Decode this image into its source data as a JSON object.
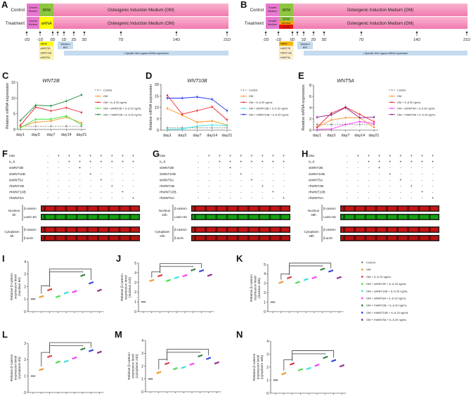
{
  "timeline_a": {
    "letter": "A",
    "row_labels": [
      "Control",
      "Treatment"
    ],
    "growth_medium": [
      "Growth",
      "Medium"
    ],
    "sfm": "SFM",
    "treatment_label": "siRNA",
    "om": "Osteogenic Induction Medium (OM)",
    "days": [
      "-2D",
      "-1D",
      "0D",
      "1D",
      "2D",
      "3D",
      "7D",
      "14D",
      "21D"
    ],
    "western_blot": [
      "Western",
      "Blot"
    ],
    "wnt_expression": "•  Specific Wnt Ligand mRNA expression",
    "reagent_list": [
      "siRNA",
      "siWNT2B",
      "siWNT10B",
      "siWNT5A"
    ]
  },
  "timeline_b": {
    "letter": "B",
    "row_labels": [
      "Control",
      "Treatment"
    ],
    "growth_medium": [
      "Growth",
      "Medium"
    ],
    "sfm": "SFM",
    "treatment_stack": [
      "SFM",
      "Activator",
      "IL-6"
    ],
    "om": "Osteogenic Induction Medium (OM)",
    "days": [
      "-2D",
      "-1D",
      "0D",
      "1D",
      "2D",
      "3D",
      "7D",
      "14D",
      "21D"
    ],
    "western_blot": [
      "Western",
      "Blot"
    ],
    "wnt_expression": "•  Specific Wnt Ligand mRNA expression",
    "reagent_list": [
      "rhWNT",
      "rhWNT2B",
      "rhWNT10B",
      "rhWNT5A"
    ]
  },
  "chart_data": [
    {
      "type": "line",
      "panel": "C",
      "title": "WNT2B",
      "ylabel": "Relative mRNA expression",
      "x": [
        "day1",
        "day3",
        "day7",
        "day14",
        "day21"
      ],
      "ylim": [
        0,
        15
      ],
      "yticks": [
        0,
        5,
        10,
        15
      ],
      "series": [
        {
          "name": "Control",
          "color": "#888888",
          "dashed": true,
          "values": [
            1,
            1,
            1,
            1,
            1
          ]
        },
        {
          "name": "OM",
          "color": "#f7931e",
          "values": [
            0.8,
            2.3,
            2.7,
            3.9,
            2.1
          ]
        },
        {
          "name": "OM + IL-6 20 ng/mL",
          "color": "#e8262b",
          "values": [
            1.3,
            7.1,
            5.9,
            6.9,
            5.4
          ]
        },
        {
          "name": "OM + siWNT2B + IL-6 20 ng/mL",
          "color": "#39e639",
          "values": [
            0.5,
            3.2,
            3.3,
            4.3,
            1.5
          ]
        },
        {
          "name": "OM + rhWNT2B + IL-6 20 ng/mL",
          "color": "#1f8a3a",
          "values": [
            2.8,
            7.7,
            7.5,
            9.0,
            11.0
          ]
        }
      ]
    },
    {
      "type": "line",
      "panel": "D",
      "title": "WNT10B",
      "ylabel": "Relative mRNA expression",
      "x": [
        "day1",
        "day3",
        "day7",
        "day14",
        "day21"
      ],
      "ylim": [
        0,
        20
      ],
      "yticks": [
        0,
        5,
        10,
        15,
        20
      ],
      "series": [
        {
          "name": "Control",
          "color": "#888888",
          "dashed": true,
          "values": [
            1,
            1,
            1,
            1,
            1
          ]
        },
        {
          "name": "OM",
          "color": "#f7931e",
          "values": [
            9.5,
            6.5,
            3.5,
            4.0,
            2.2
          ]
        },
        {
          "name": "OM + IL-6 20 ng/mL",
          "color": "#e8262b",
          "values": [
            15.2,
            7.0,
            8.5,
            10.2,
            4.5
          ]
        },
        {
          "name": "OM + siWNT10B + IL-6 20 ng/mL",
          "color": "#2ee6e6",
          "values": [
            0.3,
            0.5,
            1.8,
            2.2,
            2.0
          ]
        },
        {
          "name": "OM + rhWNT10B + IL-6 20 ng/mL",
          "color": "#2233ee",
          "values": [
            14.0,
            14.0,
            14.5,
            13.5,
            8.5
          ]
        }
      ]
    },
    {
      "type": "line",
      "panel": "E",
      "title": "WNT5A",
      "ylabel": "Relative mRNA expression",
      "x": [
        "day1",
        "day3",
        "day7",
        "day14",
        "day21"
      ],
      "ylim": [
        0,
        8
      ],
      "yticks": [
        0,
        2,
        4,
        6,
        8
      ],
      "series": [
        {
          "name": "Control",
          "color": "#888888",
          "dashed": true,
          "values": [
            1,
            1,
            1,
            1,
            1
          ]
        },
        {
          "name": "OM",
          "color": "#f7931e",
          "values": [
            0.5,
            1.8,
            2.2,
            2.2,
            0.5
          ]
        },
        {
          "name": "OM + IL-6 20 ng/mL",
          "color": "#e8262b",
          "values": [
            0.5,
            3.0,
            4.1,
            2.8,
            1.5
          ]
        },
        {
          "name": "OM + siWNT5A + IL-6 20 ng/mL",
          "color": "#ff33ff",
          "values": [
            0.1,
            0.2,
            1.0,
            1.5,
            1.2
          ]
        },
        {
          "name": "OM + rhWNT5A + IL-6 20 ng/mL",
          "color": "#8b1a8b",
          "values": [
            2.3,
            2.7,
            4.0,
            2.2,
            2.3
          ]
        }
      ]
    },
    {
      "type": "scatter",
      "panel": "I",
      "ylabel": [
        "Relative β-catenin",
        "expression level",
        "(nucleus 6h)"
      ],
      "ylim": [
        0,
        4
      ],
      "yticks": [
        0,
        1,
        2,
        3,
        4
      ],
      "values": [
        1,
        1.2,
        1.75,
        1.2,
        1.5,
        1.6,
        2.9,
        2.3,
        1.7
      ]
    },
    {
      "type": "scatter",
      "panel": "J",
      "ylabel": [
        "Relative β-catenin",
        "expression level",
        "(nucleus 24h)"
      ],
      "ylim": [
        0,
        5
      ],
      "yticks": [
        0,
        1,
        2,
        3,
        4,
        5
      ],
      "values": [
        1,
        3.2,
        3.7,
        3.2,
        3.5,
        3.7,
        4.3,
        4.2,
        3.75
      ]
    },
    {
      "type": "scatter",
      "panel": "K",
      "ylabel": [
        "Relative β-catenin",
        "expression level",
        "(nucleus 48h)"
      ],
      "ylim": [
        0,
        5
      ],
      "yticks": [
        0,
        1,
        2,
        3,
        4,
        5
      ],
      "values": [
        1,
        3.1,
        3.6,
        3.1,
        3.4,
        3.6,
        4.5,
        4.3,
        3.6
      ]
    },
    {
      "type": "scatter",
      "panel": "L",
      "ylabel": [
        "Relative β-catenin",
        "expression level",
        "(cytoplasm 6h)"
      ],
      "ylim": [
        0,
        3
      ],
      "yticks": [
        0,
        1,
        2,
        3
      ],
      "values": [
        1,
        1.4,
        2.2,
        1.85,
        1.9,
        2.1,
        2.65,
        2.55,
        2.45
      ]
    },
    {
      "type": "scatter",
      "panel": "M",
      "ylabel": [
        "Relative β-catenin",
        "expression level",
        "(cytoplasm 24h)"
      ],
      "ylim": [
        0,
        4
      ],
      "yticks": [
        0,
        1,
        2,
        3,
        4
      ],
      "values": [
        1,
        1.5,
        2.2,
        1.8,
        1.9,
        2.15,
        2.8,
        2.6,
        2.25
      ]
    },
    {
      "type": "scatter",
      "panel": "N",
      "ylabel": [
        "Relative β-catenin",
        "expression level",
        "(cytoplasm 48h)"
      ],
      "ylim": [
        0,
        4
      ],
      "yticks": [
        0,
        1,
        2,
        3,
        4
      ],
      "values": [
        1,
        1.5,
        2.25,
        1.8,
        1.9,
        2.15,
        2.75,
        2.5,
        2.1
      ]
    }
  ],
  "dot_legend": [
    {
      "name": "Control",
      "color": "#888888"
    },
    {
      "name": "OM",
      "color": "#f7931e"
    },
    {
      "name": "OM + IL-6 20 ng/mL",
      "color": "#e8262b"
    },
    {
      "name": "OM + siWNT2B + IL-6 20 ng/mL",
      "color": "#39e639"
    },
    {
      "name": "OM + siWNT10B + IL-6 20 ng/mL",
      "color": "#2ee6e6"
    },
    {
      "name": "OM + siWNT5A + IL-6 20 ng/mL",
      "color": "#ff33ff"
    },
    {
      "name": "OM + rhWNT2B + IL-6 20 ng/mL",
      "color": "#1f7a3a"
    },
    {
      "name": "OM + rhWNT10B + IL-6 20 ng/mL",
      "color": "#2233ee"
    },
    {
      "name": "OM + rhWNT5A + IL-6 20 ng/mL",
      "color": "#8b1a8b"
    }
  ],
  "blots": [
    {
      "panel": "F",
      "time": "6h"
    },
    {
      "panel": "G",
      "time": "24h"
    },
    {
      "panel": "H",
      "time": "48h"
    }
  ],
  "blot_common": {
    "conditions": [
      "OM",
      "IL-6",
      "siWNT2B",
      "siWNT10B",
      "siWNT5A",
      "rhWNT2B",
      "rhWNT10B",
      "rhWNT5A"
    ],
    "matrix": [
      [
        "-",
        "+",
        "+",
        "+",
        "+",
        "+",
        "+",
        "+",
        "+"
      ],
      [
        "-",
        "-",
        "+",
        "+",
        "+",
        "+",
        "+",
        "+",
        "+"
      ],
      [
        "-",
        "-",
        "-",
        "+",
        "-",
        "-",
        "-",
        "-",
        "-"
      ],
      [
        "-",
        "-",
        "-",
        "-",
        "+",
        "-",
        "-",
        "-",
        "-"
      ],
      [
        "-",
        "-",
        "-",
        "-",
        "-",
        "+",
        "-",
        "-",
        "-"
      ],
      [
        "-",
        "-",
        "-",
        "-",
        "-",
        "-",
        "+",
        "-",
        "-"
      ],
      [
        "-",
        "-",
        "-",
        "-",
        "-",
        "-",
        "-",
        "+",
        "-"
      ],
      [
        "-",
        "-",
        "-",
        "-",
        "-",
        "-",
        "-",
        "-",
        "+"
      ]
    ],
    "nucleus": "Nucleus",
    "cytoplasm": "Cytoplasm",
    "nucleus_bands": [
      "β-catenin",
      "Lamin B1"
    ],
    "cytoplasm_bands": [
      "β-catenin",
      "β-actin"
    ]
  }
}
